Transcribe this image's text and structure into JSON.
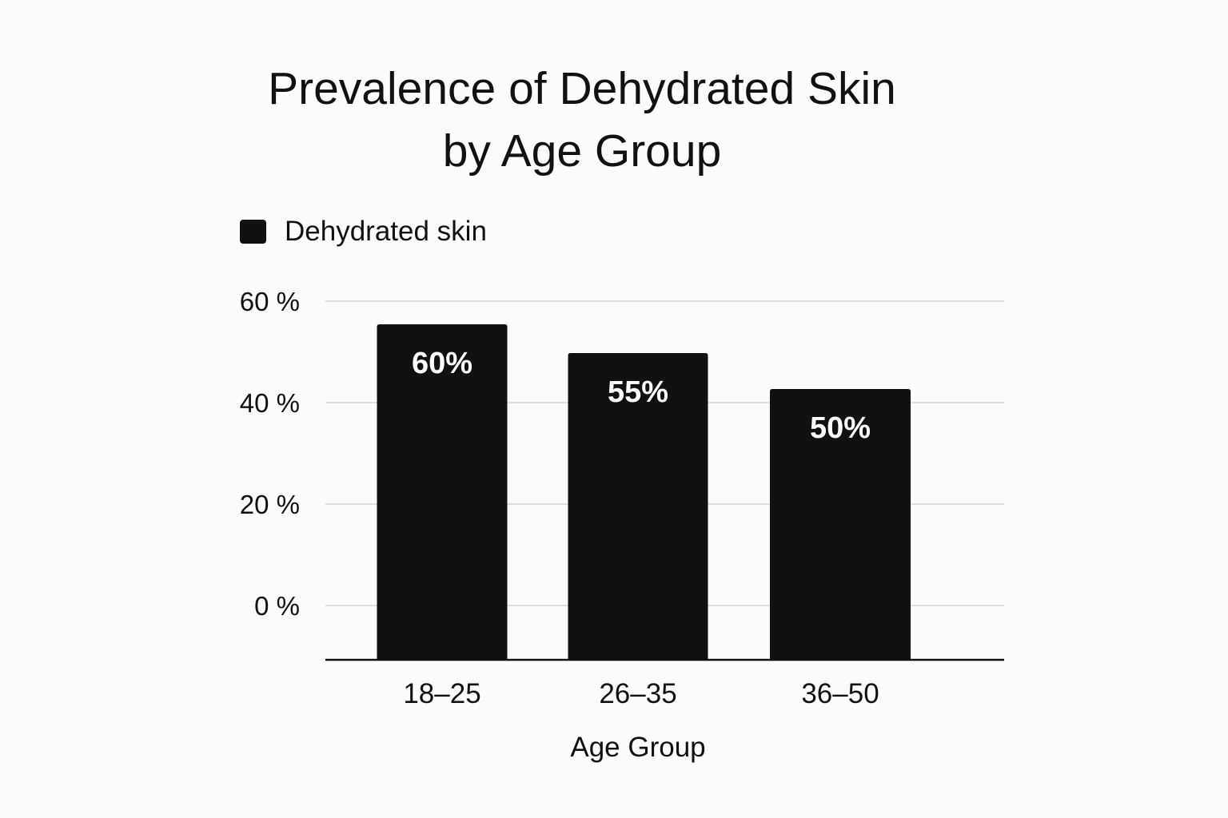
{
  "chart_data": {
    "type": "bar",
    "title_lines": [
      "Prevalence of Dehydrated Skin",
      "by Age Group"
    ],
    "legend": {
      "label": "Dehydrated skin",
      "placement": "top-left"
    },
    "categories": [
      "18–25",
      "26–35",
      "36–50"
    ],
    "series": [
      {
        "name": "Dehydrated skin",
        "values": [
          60,
          55,
          50
        ],
        "data_labels": [
          "60%",
          "55%",
          "50%"
        ],
        "color": "#111111"
      }
    ],
    "xlabel": "Age Group",
    "ylabel": "",
    "y_ticks": [
      0,
      20,
      40,
      60
    ],
    "y_tick_labels": [
      "0 %",
      "20 %",
      "40 %",
      "60 %"
    ],
    "grid": true
  }
}
